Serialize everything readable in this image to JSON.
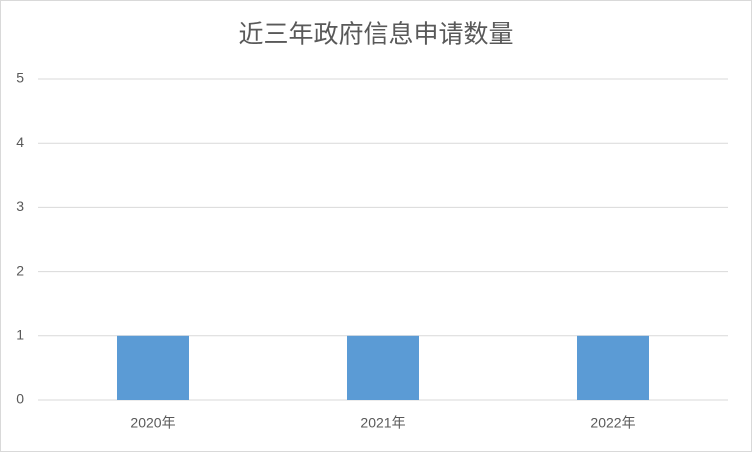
{
  "chart_data": {
    "type": "bar",
    "title": "近三年政府信息申请数量",
    "categories": [
      "2020年",
      "2021年",
      "2022年"
    ],
    "values": [
      1,
      1,
      1
    ],
    "color": "#5b9bd5",
    "ylim": [
      0,
      5
    ],
    "yticks": [
      0,
      1,
      2,
      3,
      4,
      5
    ],
    "grid": true
  }
}
